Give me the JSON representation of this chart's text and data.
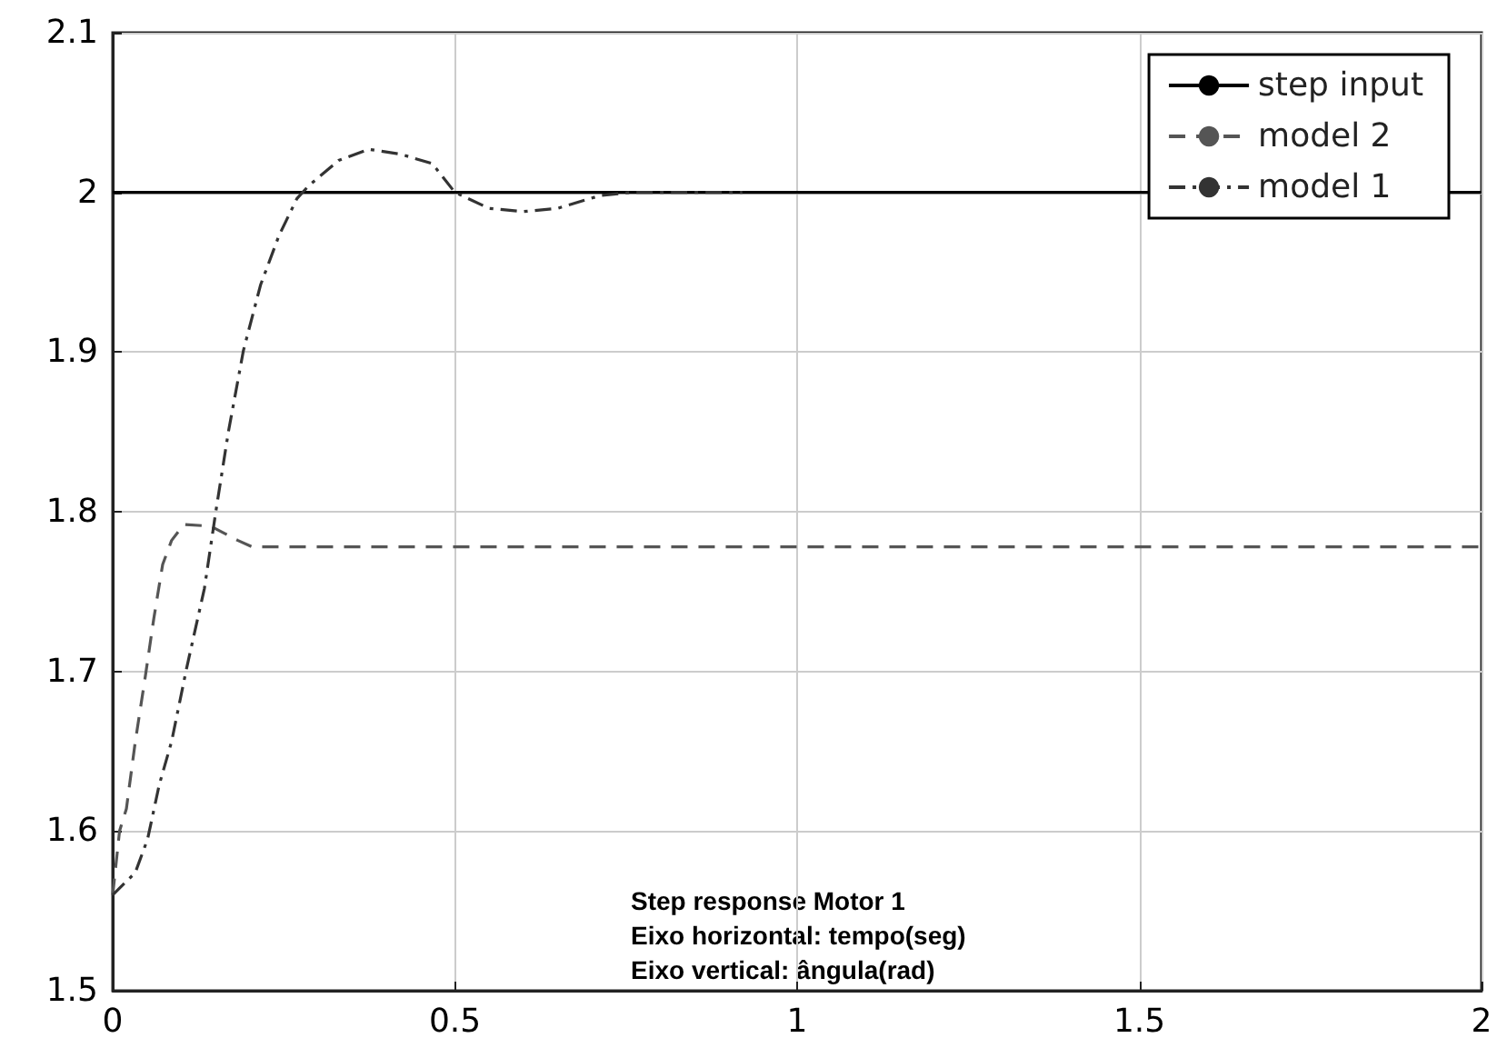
{
  "chart_data": {
    "type": "line",
    "annotations": [
      "Step response Motor 1",
      "Eixo horizontal: tempo(seg)",
      "Eixo vertical: ângula(rad)"
    ],
    "series": [
      {
        "name": "step input",
        "type": "step",
        "color": "#000000",
        "line_style": "solid",
        "x": [
          0,
          2
        ],
        "values": [
          2,
          2
        ]
      },
      {
        "name": "model 2",
        "color": "#555555",
        "line_style": "dashed",
        "x": [
          0,
          0.01,
          0.02,
          0.033,
          0.047,
          0.06,
          0.073,
          0.086,
          0.104,
          0.143,
          0.183,
          0.204,
          0.5,
          1,
          1.5,
          2
        ],
        "values": [
          1.56,
          1.6,
          1.614,
          1.656,
          1.695,
          1.733,
          1.767,
          1.782,
          1.792,
          1.791,
          1.782,
          1.778,
          1.778,
          1.778,
          1.778,
          1.778
        ]
      },
      {
        "name": "model 1",
        "color": "#333333",
        "line_style": "dashdot",
        "x": [
          0,
          0.033,
          0.051,
          0.068,
          0.086,
          0.108,
          0.134,
          0.151,
          0.169,
          0.191,
          0.216,
          0.243,
          0.269,
          0.286,
          0.33,
          0.374,
          0.42,
          0.467,
          0.5,
          0.55,
          0.6,
          0.65,
          0.712,
          0.757,
          0.85,
          0.92
        ],
        "values": [
          1.56,
          1.574,
          1.595,
          1.629,
          1.656,
          1.702,
          1.752,
          1.801,
          1.85,
          1.901,
          1.942,
          1.973,
          1.996,
          2.004,
          2.02,
          2.027,
          2.024,
          2.018,
          2.0,
          1.99,
          1.988,
          1.99,
          1.998,
          2.0,
          2.0,
          2.0
        ]
      }
    ],
    "xlim": [
      0,
      2
    ],
    "xticks": [
      0,
      0.5,
      1,
      1.5,
      2
    ],
    "ylim": [
      1.5,
      2.1
    ],
    "yticks": [
      1.5,
      1.6,
      1.7,
      1.8,
      1.9,
      2,
      2.1
    ],
    "grid": true,
    "legend": "top right",
    "marker": "none"
  }
}
